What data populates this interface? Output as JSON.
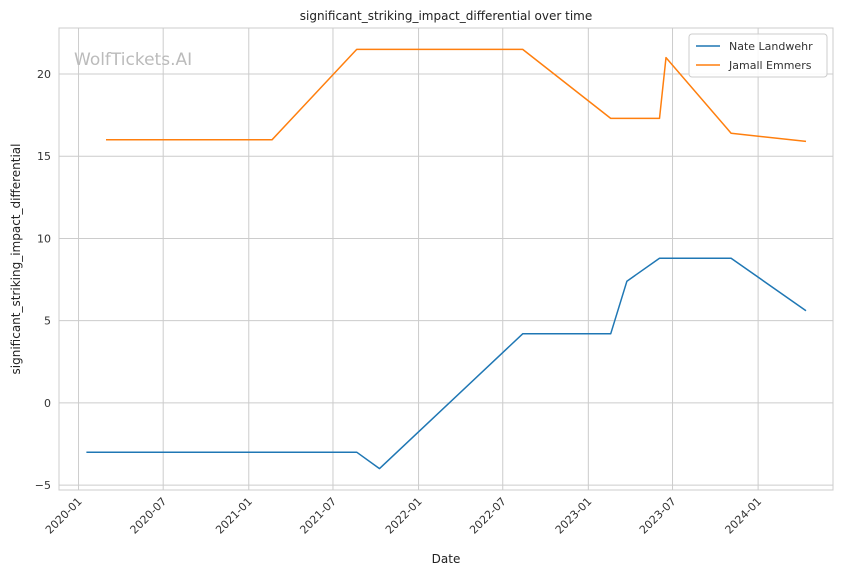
{
  "chart_data": {
    "type": "line",
    "title": "significant_striking_impact_differential over time",
    "xlabel": "Date",
    "ylabel": "significant_striking_impact_differential",
    "watermark": "WolfTickets.AI",
    "xlim": [
      "2019-11-20",
      "2024-06-10"
    ],
    "ylim": [
      -5.3,
      22.8
    ],
    "x_ticks": [
      {
        "date": "2020-01-01",
        "label": "2020-01"
      },
      {
        "date": "2020-07-01",
        "label": "2020-07"
      },
      {
        "date": "2021-01-01",
        "label": "2021-01"
      },
      {
        "date": "2021-07-01",
        "label": "2021-07"
      },
      {
        "date": "2022-01-01",
        "label": "2022-01"
      },
      {
        "date": "2022-07-01",
        "label": "2022-07"
      },
      {
        "date": "2023-01-01",
        "label": "2023-01"
      },
      {
        "date": "2023-07-01",
        "label": "2023-07"
      },
      {
        "date": "2024-01-01",
        "label": "2024-01"
      }
    ],
    "y_ticks": [
      -5,
      0,
      5,
      10,
      15,
      20
    ],
    "grid": true,
    "legend_position": "top-right",
    "series": [
      {
        "name": "Nate Landwehr",
        "color": "#1f77b4",
        "points": [
          {
            "x": "2020-01-18",
            "y": -3.0
          },
          {
            "x": "2021-08-21",
            "y": -3.0
          },
          {
            "x": "2021-10-09",
            "y": -4.0
          },
          {
            "x": "2022-08-13",
            "y": 4.2
          },
          {
            "x": "2023-02-18",
            "y": 4.2
          },
          {
            "x": "2023-03-25",
            "y": 7.4
          },
          {
            "x": "2023-06-03",
            "y": 8.8
          },
          {
            "x": "2023-11-04",
            "y": 8.8
          },
          {
            "x": "2024-04-13",
            "y": 5.6
          }
        ]
      },
      {
        "name": "Jamall Emmers",
        "color": "#ff7f0e",
        "points": [
          {
            "x": "2020-02-29",
            "y": 16.0
          },
          {
            "x": "2021-02-20",
            "y": 16.0
          },
          {
            "x": "2021-08-21",
            "y": 21.5
          },
          {
            "x": "2022-08-13",
            "y": 21.5
          },
          {
            "x": "2023-02-18",
            "y": 17.3
          },
          {
            "x": "2023-06-03",
            "y": 17.3
          },
          {
            "x": "2023-06-17",
            "y": 21.0
          },
          {
            "x": "2023-11-04",
            "y": 16.4
          },
          {
            "x": "2024-04-13",
            "y": 15.9
          }
        ]
      }
    ]
  }
}
